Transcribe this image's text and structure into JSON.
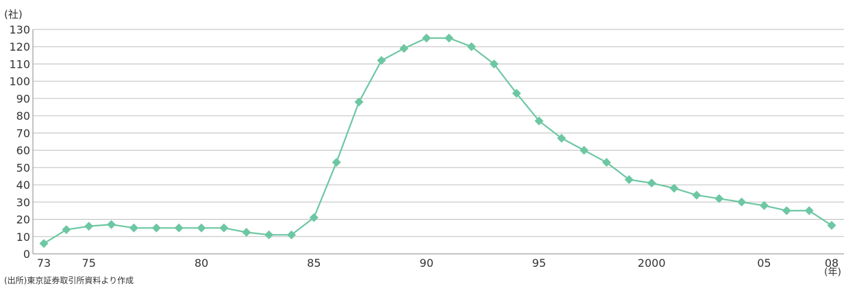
{
  "chart_data": {
    "type": "line",
    "y_unit": "(社)",
    "x_unit": "(年)",
    "source": "(出所)東京証券取引所資料より作成",
    "ylim": [
      0,
      130
    ],
    "y_ticks": [
      0,
      10,
      20,
      30,
      40,
      50,
      60,
      70,
      80,
      90,
      100,
      110,
      120,
      130
    ],
    "x_ticks": [
      {
        "year": 1973,
        "label": "73"
      },
      {
        "year": 1975,
        "label": "75"
      },
      {
        "year": 1980,
        "label": "80"
      },
      {
        "year": 1985,
        "label": "85"
      },
      {
        "year": 1990,
        "label": "90"
      },
      {
        "year": 1995,
        "label": "95"
      },
      {
        "year": 2000,
        "label": "2000"
      },
      {
        "year": 2005,
        "label": "05"
      },
      {
        "year": 2008,
        "label": "08"
      }
    ],
    "grid": true,
    "x": [
      1973,
      1974,
      1975,
      1976,
      1977,
      1978,
      1979,
      1980,
      1981,
      1982,
      1983,
      1984,
      1985,
      1986,
      1987,
      1988,
      1989,
      1990,
      1991,
      1992,
      1993,
      1994,
      1995,
      1996,
      1997,
      1998,
      1999,
      2000,
      2001,
      2002,
      2003,
      2004,
      2005,
      2006,
      2007,
      2008
    ],
    "series": [
      {
        "values": [
          6,
          14,
          16,
          17,
          15,
          15,
          15,
          15,
          15,
          12.5,
          11,
          11,
          21,
          53,
          88,
          112,
          119,
          125,
          125,
          120,
          110,
          93,
          77,
          67,
          60,
          53,
          43,
          41,
          38,
          34,
          32,
          30,
          28,
          25,
          25,
          16.5
        ],
        "color": "#6cc7a2",
        "marker": "diamond"
      }
    ]
  }
}
